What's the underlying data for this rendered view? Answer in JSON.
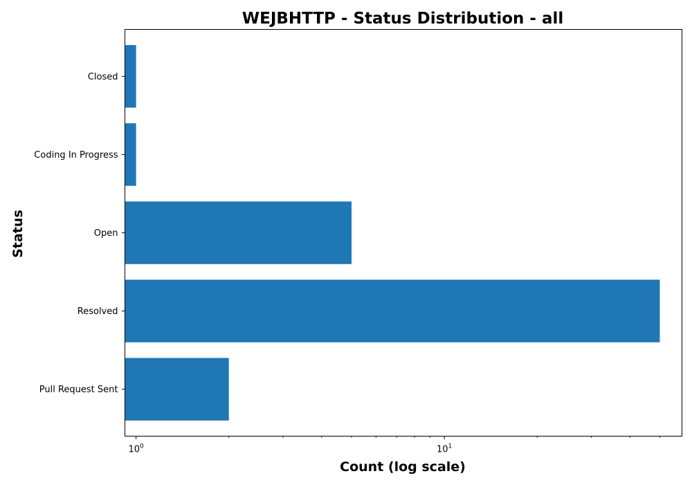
{
  "chart_data": {
    "type": "bar",
    "orientation": "horizontal",
    "title": "WEJBHTTP - Status Distribution - all",
    "xlabel": "Count (log scale)",
    "ylabel": "Status",
    "x_scale": "log",
    "xlim": [
      0.92,
      59
    ],
    "grid": false,
    "legend": "none",
    "bar_color": "#1f77b4",
    "categories": [
      "Closed",
      "Coding In Progress",
      "Open",
      "Resolved",
      "Pull Request Sent"
    ],
    "values": [
      1,
      1,
      5,
      50,
      2
    ],
    "x_ticks": [
      {
        "value": 1,
        "base": "10",
        "exponent": "0"
      },
      {
        "value": 10,
        "base": "10",
        "exponent": "1"
      }
    ]
  }
}
